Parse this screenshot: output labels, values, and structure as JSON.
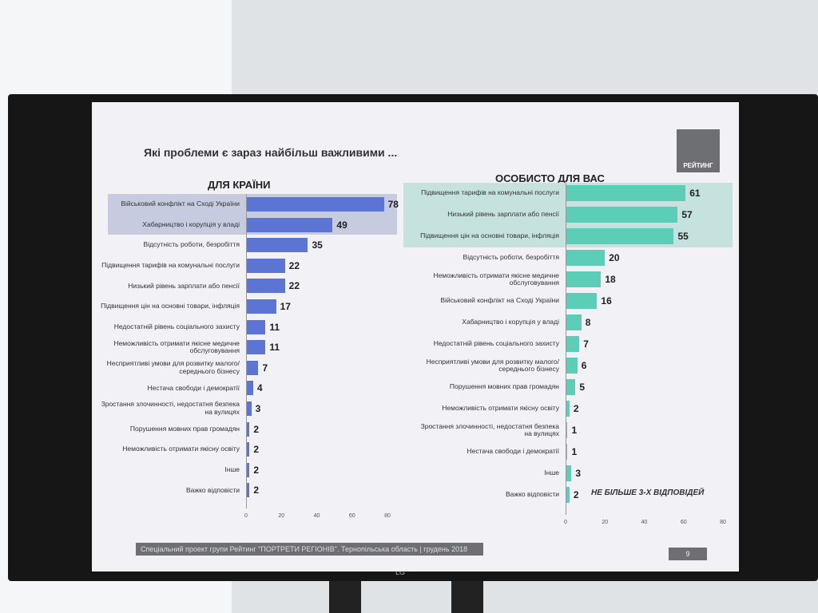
{
  "slide": {
    "title": "Які проблеми є зараз найбільш важливими ...",
    "logo": "РЕЙТИНГ",
    "footer": "Спеціальний проект групи Рейтинг \"ПОРТРЕТИ РЕГІОНІВ\". Тернопільська область | грудень 2018",
    "page": "9",
    "brand": "LG"
  },
  "chart_data": [
    {
      "type": "bar",
      "orientation": "horizontal",
      "title": "ДЛЯ КРАЇНИ",
      "categories": [
        "Військовий конфлікт на Сході України",
        "Хабарництво і корупція у владі",
        "Відсутність роботи, безробіття",
        "Підвищення тарифів на комунальні послуги",
        "Низький рівень зарплати або пенсії",
        "Підвищення цін на основні товари, інфляція",
        "Недостатній рівень соціального захисту",
        "Неможливість отримати якісне медичне обслуговування",
        "Несприятливі умови для розвитку малого/середнього бізнесу",
        "Нестача свободи і демократії",
        "Зростання злочинності, недостатня безпека на вулицях",
        "Порушення мовних прав громадян",
        "Неможливість отримати якісну освіту",
        "Інше",
        "Важко відповісти"
      ],
      "values": [
        78,
        49,
        35,
        22,
        22,
        17,
        11,
        11,
        7,
        4,
        3,
        2,
        2,
        2,
        2
      ],
      "color": "#5c74d4",
      "highlight_color": "#c6cbe0",
      "highlight_rows": 2,
      "xlim": [
        0,
        80
      ],
      "xticks": [
        0,
        20,
        40,
        60,
        80
      ]
    },
    {
      "type": "bar",
      "orientation": "horizontal",
      "title": "ОСОБИСТО ДЛЯ ВАС",
      "categories": [
        "Підвищення тарифів на комунальні послуги",
        "Низький рівень зарплати або пенсії",
        "Підвищення цін на основні товари, інфляція",
        "Відсутність роботи, безробіття",
        "Неможливість отримати якісне медичне обслуговування",
        "Військовий конфлікт на Сході України",
        "Хабарництво і корупція у владі",
        "Недостатній рівень соціального захисту",
        "Несприятливі умови для розвитку малого/середнього бізнесу",
        "Порушення мовних прав громадян",
        "Неможливість отримати якісну освіту",
        "Зростання злочинності, недостатня безпека на вулицях",
        "Нестача свободи і демократії",
        "Інше",
        "Важко відповісти"
      ],
      "values": [
        61,
        57,
        55,
        20,
        18,
        16,
        8,
        7,
        6,
        5,
        2,
        1,
        1,
        3,
        2
      ],
      "color": "#5ccdb6",
      "highlight_color": "#c5e2df",
      "highlight_rows": 3,
      "xlim": [
        0,
        80
      ],
      "xticks": [
        0,
        20,
        40,
        60,
        80
      ],
      "annotation": "НЕ БІЛЬШЕ 3-Х ВІДПОВІДЕЙ"
    }
  ]
}
